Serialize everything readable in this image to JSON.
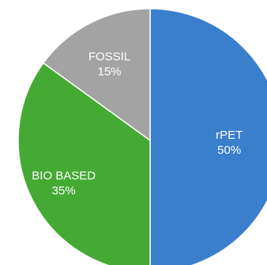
{
  "chart_data": {
    "type": "pie",
    "start_angle": "12 o'clock",
    "direction": "clockwise",
    "slices": [
      {
        "label": "rPET",
        "value": 50,
        "value_label": "50%",
        "color": "#3a7fcc"
      },
      {
        "label": "BIO BASED",
        "value": 35,
        "value_label": "35%",
        "color": "#44aa33"
      },
      {
        "label": "FOSSIL",
        "value": 15,
        "value_label": "15%",
        "color": "#a3a3a3"
      }
    ],
    "divider_color": "#ffffff"
  }
}
